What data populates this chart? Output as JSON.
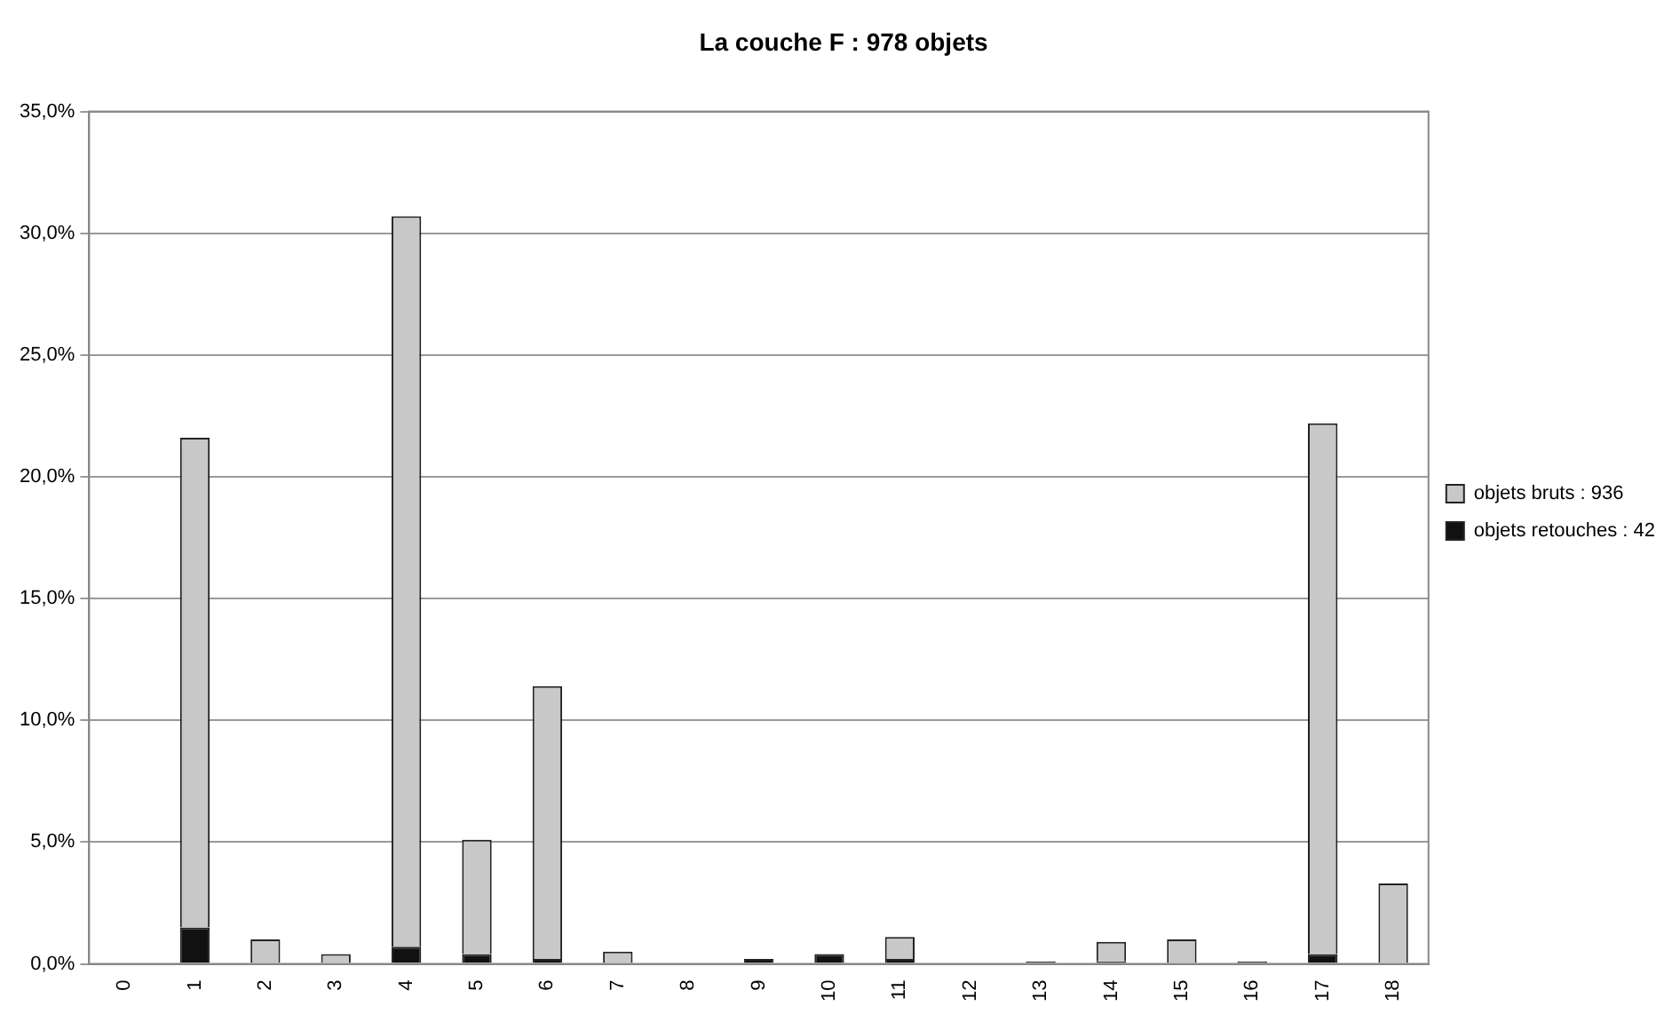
{
  "chart_data": {
    "type": "bar",
    "title": "La couche F : 978 objets",
    "stacked": true,
    "categories": [
      "0",
      "1",
      "2",
      "3",
      "4",
      "5",
      "6",
      "7",
      "8",
      "9",
      "10",
      "11",
      "12",
      "13",
      "14",
      "15",
      "16",
      "17",
      "18"
    ],
    "series": [
      {
        "name": "objets retouches : 42",
        "color": "#111111",
        "values": [
          0,
          1.5,
          0,
          0,
          0.7,
          0.4,
          0.2,
          0,
          0,
          0.2,
          0.4,
          0.2,
          0,
          0.1,
          0.1,
          0,
          0.1,
          0.4,
          0
        ]
      },
      {
        "name": "objets bruts : 936",
        "color": "#c8c8c8",
        "values": [
          0,
          20.1,
          1.0,
          0.4,
          30.0,
          4.7,
          11.2,
          0.5,
          0,
          0,
          0,
          0.9,
          0,
          0,
          0.8,
          1.0,
          0,
          21.8,
          3.3
        ]
      }
    ],
    "ylim": [
      0,
      35
    ],
    "yticks": [
      {
        "value": 0,
        "label": "0,0%"
      },
      {
        "value": 5,
        "label": "5,0%"
      },
      {
        "value": 10,
        "label": "10,0%"
      },
      {
        "value": 15,
        "label": "15,0%"
      },
      {
        "value": 20,
        "label": "20,0%"
      },
      {
        "value": 25,
        "label": "25,0%"
      },
      {
        "value": 30,
        "label": "30,0%"
      },
      {
        "value": 35,
        "label": "35,0%"
      }
    ],
    "grid": "y",
    "legend": "right"
  }
}
